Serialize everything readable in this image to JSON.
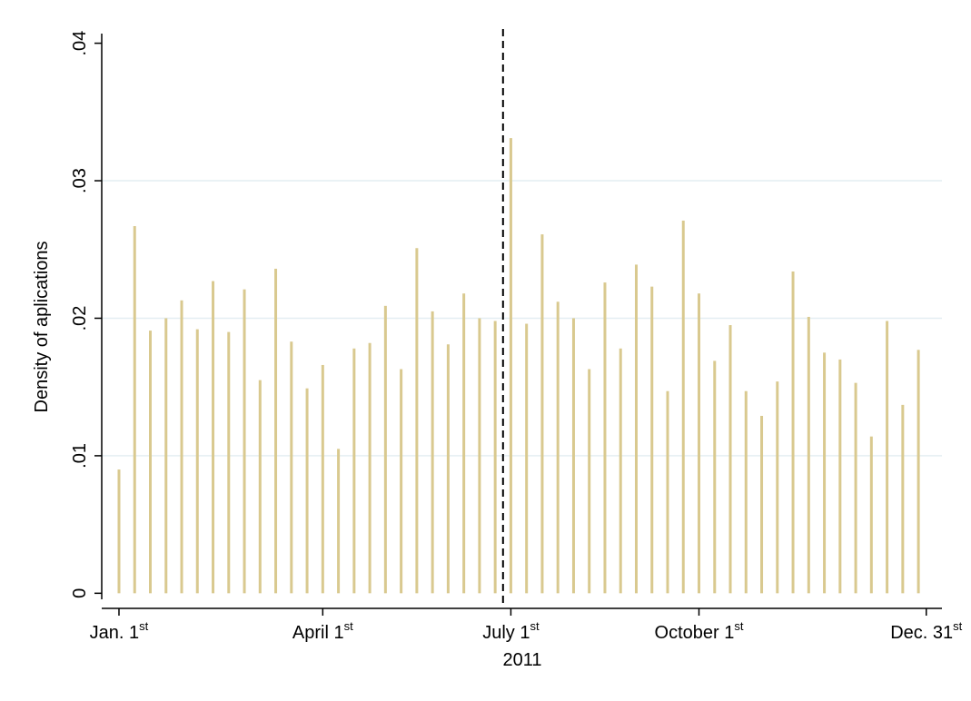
{
  "chart_data": {
    "type": "bar",
    "y_label": "Density of aplications",
    "x_label": "2011",
    "x": [
      1,
      2,
      3,
      4,
      5,
      6,
      7,
      8,
      9,
      10,
      11,
      12,
      13,
      14,
      15,
      16,
      17,
      18,
      19,
      20,
      21,
      22,
      23,
      24,
      25,
      26,
      27,
      28,
      29,
      30,
      31,
      32,
      33,
      34,
      35,
      36,
      37,
      38,
      39,
      40,
      41,
      42,
      43,
      44,
      45,
      46,
      47,
      48,
      49,
      50,
      51,
      52
    ],
    "values": [
      0.009,
      0.0267,
      0.0191,
      0.02,
      0.0213,
      0.0192,
      0.0227,
      0.019,
      0.0221,
      0.0155,
      0.0236,
      0.0183,
      0.0149,
      0.0166,
      0.0105,
      0.0178,
      0.0182,
      0.0209,
      0.0163,
      0.0251,
      0.0205,
      0.0181,
      0.0218,
      0.02,
      0.0198,
      0.0331,
      0.0196,
      0.0261,
      0.0212,
      0.02,
      0.0163,
      0.0226,
      0.0178,
      0.0239,
      0.0223,
      0.0147,
      0.0271,
      0.0218,
      0.0169,
      0.0195,
      0.0147,
      0.0129,
      0.0154,
      0.0234,
      0.0201,
      0.0175,
      0.017,
      0.0153,
      0.0114,
      0.0198,
      0.0137,
      0.0177
    ],
    "color": "#d9c98f",
    "xlim": [
      -0.1,
      53.5
    ],
    "xticks": [
      {
        "value": 1,
        "label": "Jan. 1",
        "sup": "st"
      },
      {
        "value": 14,
        "label": "April 1",
        "sup": "st"
      },
      {
        "value": 26,
        "label": "July 1",
        "sup": "st"
      },
      {
        "value": 38,
        "label": "October 1",
        "sup": "st"
      },
      {
        "value": 52.5,
        "label": "Dec. 31",
        "sup": "st"
      }
    ],
    "ylim": [
      -0.0011,
      0.0407
    ],
    "yticks": [
      0,
      {
        "value": 0.01,
        "label": ".01"
      },
      {
        "value": 0.02,
        "label": ".02"
      },
      {
        "value": 0.03,
        "label": ".03"
      },
      {
        "value": 0.04,
        "label": ".04"
      }
    ],
    "reference_line": 25.5,
    "grid": true
  }
}
